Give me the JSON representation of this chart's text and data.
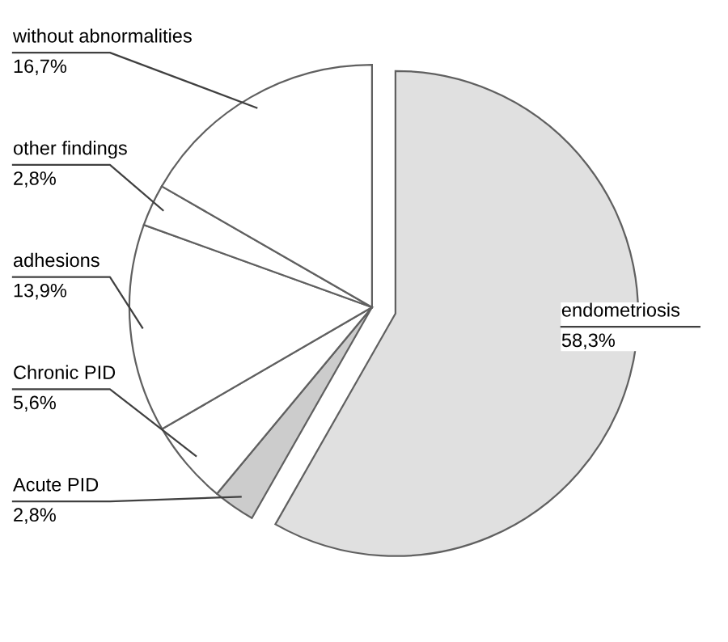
{
  "chart_data": {
    "type": "pie",
    "categories": [
      "endometriosis",
      "Acute PID",
      "Chronic PID",
      "adhesions",
      "other findings",
      "without abnormalities"
    ],
    "values": [
      58.3,
      2.8,
      5.6,
      13.9,
      2.8,
      16.7
    ],
    "value_labels": [
      "58,3%",
      "2,8%",
      "5,6%",
      "13,9%",
      "2,8%",
      "16,7%"
    ],
    "colors": [
      "#e0e0e0",
      "#cccccc",
      "#ffffff",
      "#ffffff",
      "#ffffff",
      "#ffffff"
    ],
    "legend": false
  }
}
